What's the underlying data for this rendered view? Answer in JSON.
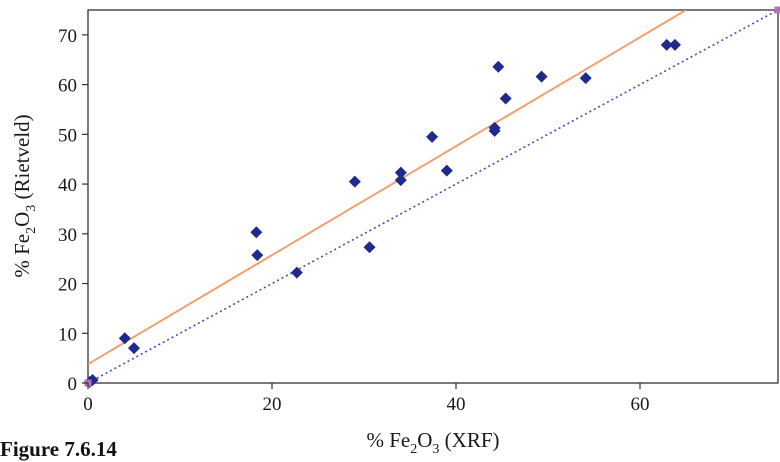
{
  "figure_label": "Figure 7.6.14",
  "chart_data": {
    "type": "scatter",
    "xlabel": {
      "prefix": "% Fe",
      "sub1": "2",
      "mid": "O",
      "sub2": "3",
      "suffix": " (XRF)"
    },
    "ylabel": {
      "prefix": "% Fe",
      "sub1": "2",
      "mid": "O",
      "sub2": "3",
      "suffix": " (Rietveld)"
    },
    "xlim": [
      0,
      75
    ],
    "ylim": [
      0,
      75
    ],
    "xticks": [
      0,
      20,
      40,
      60
    ],
    "yticks": [
      0,
      10,
      20,
      30,
      40,
      50,
      60,
      70
    ],
    "grid": false,
    "series": [
      {
        "marker": "diamond",
        "color": "#1f2a8c",
        "points": [
          [
            0.2,
            0.2
          ],
          [
            0.5,
            0.6
          ],
          [
            4,
            9
          ],
          [
            5,
            7
          ],
          [
            18.3,
            30.3
          ],
          [
            18.4,
            25.7
          ],
          [
            22.7,
            22.2
          ],
          [
            29,
            40.5
          ],
          [
            30.6,
            27.3
          ],
          [
            34,
            42.3
          ],
          [
            34,
            40.8
          ],
          [
            37.4,
            49.5
          ],
          [
            39,
            42.7
          ],
          [
            44.2,
            50.7
          ],
          [
            44.2,
            51.3
          ],
          [
            44.6,
            63.6
          ],
          [
            45.4,
            57.2
          ],
          [
            49.3,
            61.6
          ],
          [
            54.1,
            61.3
          ],
          [
            62.9,
            68
          ],
          [
            63.8,
            68
          ]
        ]
      }
    ],
    "lines": [
      {
        "kind": "fit",
        "color": "#f0a070",
        "style": "solid",
        "from": [
          0,
          3.8
        ],
        "to": [
          65,
          75
        ]
      },
      {
        "kind": "identity",
        "color": "#3d4fb8",
        "style": "dotted",
        "from": [
          0,
          0
        ],
        "to": [
          75,
          75
        ]
      }
    ],
    "endpoint_markers": {
      "color": "#b070c0",
      "points": [
        [
          0,
          0
        ],
        [
          75,
          75
        ]
      ]
    }
  }
}
